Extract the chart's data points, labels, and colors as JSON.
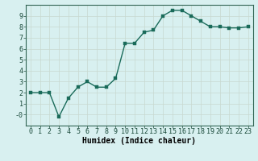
{
  "x": [
    0,
    1,
    2,
    3,
    4,
    5,
    6,
    7,
    8,
    9,
    10,
    11,
    12,
    13,
    14,
    15,
    16,
    17,
    18,
    19,
    20,
    21,
    22,
    23
  ],
  "y": [
    2.0,
    2.0,
    2.0,
    -0.2,
    1.5,
    2.5,
    3.0,
    2.5,
    2.5,
    3.3,
    6.5,
    6.5,
    7.5,
    7.7,
    9.0,
    9.5,
    9.5,
    9.0,
    8.5,
    8.0,
    8.0,
    7.9,
    7.9,
    8.0
  ],
  "line_color": "#1a6b5a",
  "marker_color": "#1a6b5a",
  "bg_color": "#d8f0f0",
  "grid_color": "#c8e0e0",
  "grid_minor_color": "#e0b8b8",
  "xlabel": "Humidex (Indice chaleur)",
  "xlim_min": -0.5,
  "xlim_max": 23.5,
  "ylim_min": -1.0,
  "ylim_max": 10.0,
  "yticks": [
    0,
    1,
    2,
    3,
    4,
    5,
    6,
    7,
    8,
    9
  ],
  "ytick_labels": [
    "-0",
    "1",
    "2",
    "3",
    "4",
    "5",
    "6",
    "7",
    "8",
    "9"
  ],
  "xticks": [
    0,
    1,
    2,
    3,
    4,
    5,
    6,
    7,
    8,
    9,
    10,
    11,
    12,
    13,
    14,
    15,
    16,
    17,
    18,
    19,
    20,
    21,
    22,
    23
  ],
  "xlabel_fontsize": 7,
  "tick_fontsize": 6,
  "linewidth": 1.0,
  "markersize": 2.5
}
